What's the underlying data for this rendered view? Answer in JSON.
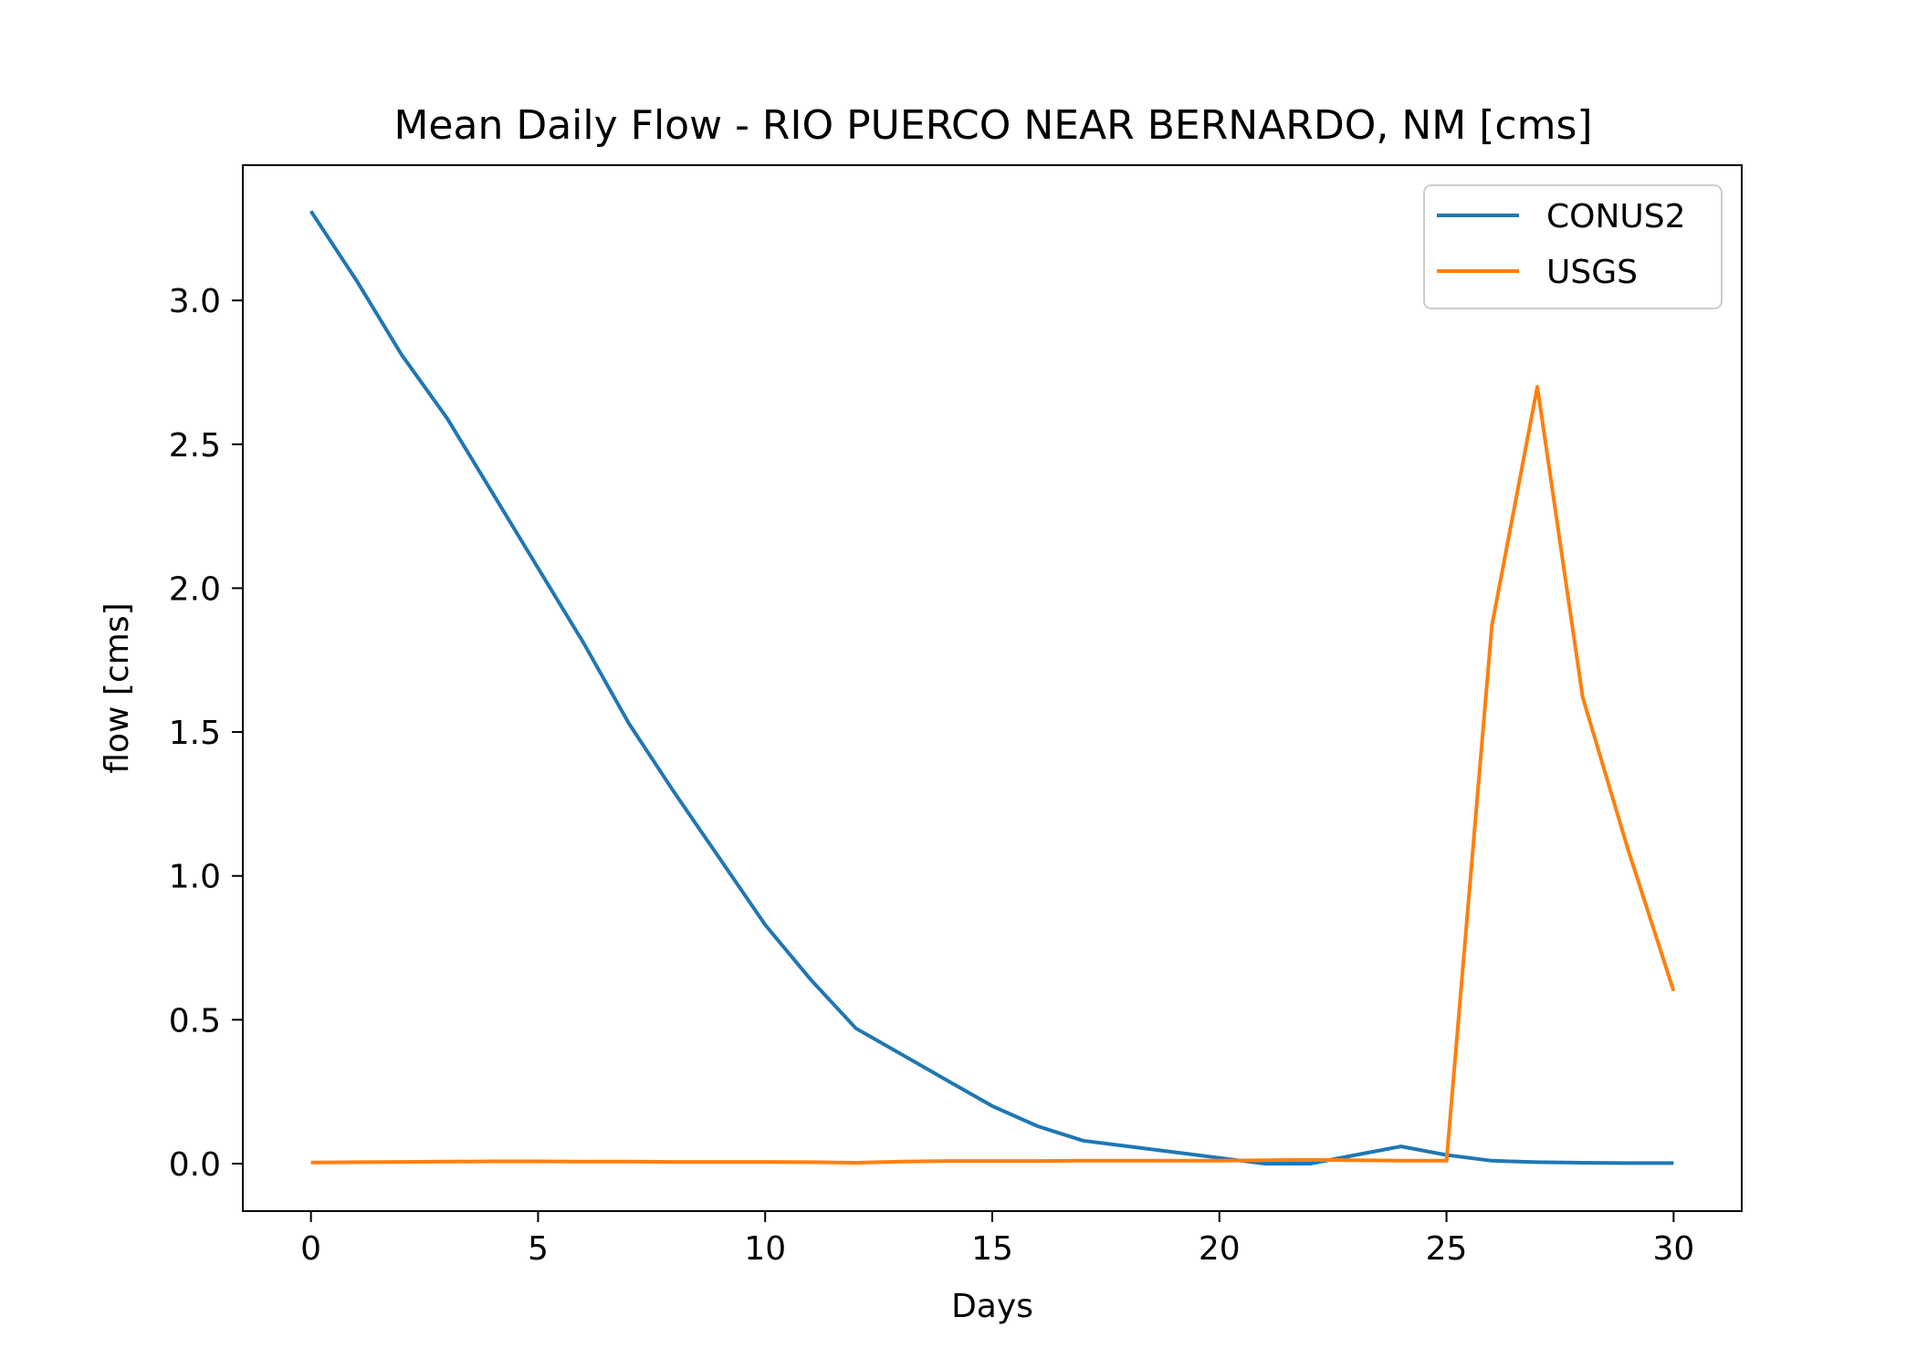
{
  "chart_data": {
    "type": "line",
    "title": "Mean Daily Flow - RIO PUERCO NEAR BERNARDO, NM [cms]",
    "xlabel": "Days",
    "ylabel": "flow [cms]",
    "xlim": [
      -1.5,
      31.5
    ],
    "ylim": [
      -0.165,
      3.47
    ],
    "xticks": [
      0,
      5,
      10,
      15,
      20,
      25,
      30
    ],
    "xtick_labels": [
      "0",
      "5",
      "10",
      "15",
      "20",
      "25",
      "30"
    ],
    "yticks": [
      0.0,
      0.5,
      1.0,
      1.5,
      2.0,
      2.5,
      3.0
    ],
    "ytick_labels": [
      "0.0",
      "0.5",
      "1.0",
      "1.5",
      "2.0",
      "2.5",
      "3.0"
    ],
    "grid": false,
    "legend_position": "top-right",
    "x": [
      0,
      1,
      2,
      3,
      4,
      5,
      6,
      7,
      8,
      9,
      10,
      11,
      12,
      13,
      14,
      15,
      16,
      17,
      18,
      19,
      20,
      21,
      22,
      23,
      24,
      25,
      26,
      27,
      28,
      29,
      30
    ],
    "series": [
      {
        "name": "CONUS2",
        "color": "#1f77b4",
        "values": [
          3.31,
          3.07,
          2.81,
          2.59,
          2.33,
          2.07,
          1.81,
          1.53,
          1.29,
          1.06,
          0.83,
          0.64,
          0.47,
          0.38,
          0.29,
          0.2,
          0.13,
          0.08,
          0.06,
          0.04,
          0.02,
          0.0,
          0.0,
          0.03,
          0.06,
          0.03,
          0.01,
          0.005,
          0.003,
          0.002,
          0.002
        ]
      },
      {
        "name": "USGS",
        "color": "#ff7f0e",
        "values": [
          0.004,
          0.005,
          0.006,
          0.007,
          0.008,
          0.008,
          0.007,
          0.007,
          0.006,
          0.006,
          0.006,
          0.005,
          0.003,
          0.007,
          0.009,
          0.009,
          0.009,
          0.01,
          0.01,
          0.01,
          0.01,
          0.012,
          0.013,
          0.012,
          0.01,
          0.01,
          1.87,
          2.7,
          1.62,
          1.09,
          0.6
        ]
      }
    ]
  }
}
